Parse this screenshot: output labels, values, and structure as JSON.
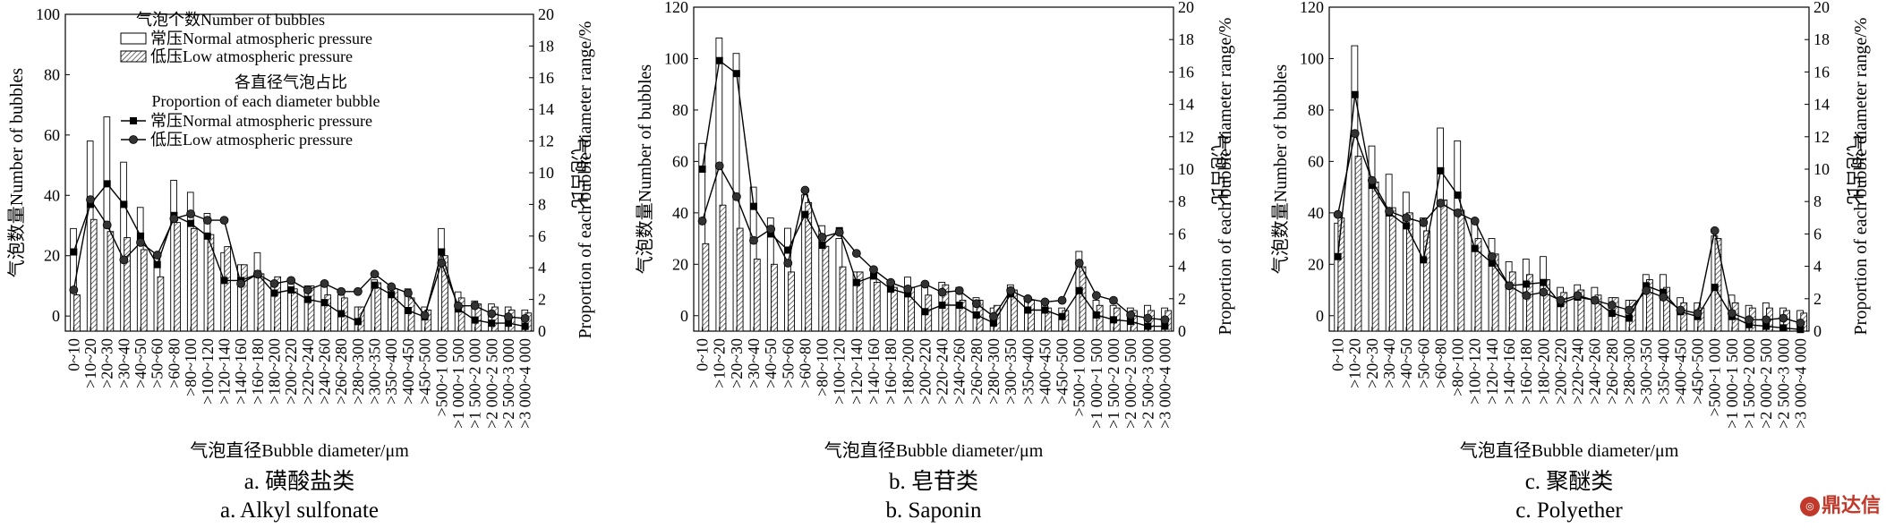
{
  "figure": {
    "watermark": "鼎达信",
    "shared": {
      "categories": [
        "0~10",
        ">10~20",
        ">20~30",
        ">30~40",
        ">40~50",
        ">50~60",
        ">60~80",
        ">80~100",
        ">100~120",
        ">120~140",
        ">140~160",
        ">160~180",
        ">180~200",
        ">200~220",
        ">220~240",
        ">240~260",
        ">260~280",
        ">280~300",
        ">300~350",
        ">350~400",
        ">400~450",
        ">450~500",
        ">500~1 000",
        ">1 000~1 500",
        ">1 500~2 000",
        ">2 000~2 500",
        ">2 500~3 000",
        ">3 000~4 000"
      ],
      "xlabel": "气泡直径Bubble diameter/μm",
      "ylabel_left": "气泡数量Number of bubbles",
      "ylabel_right_cn": "气泡占比",
      "ylabel_right_en": "Proportion of each bubble diameter range/%",
      "legend": {
        "count_title": "气泡个数Number of bubbles",
        "count_normal": "常压Normal atmospheric pressure",
        "count_low": "低压Low atmospheric pressure",
        "prop_title_cn": "各直径气泡占比",
        "prop_title_en": "Proportion of each diameter bubble",
        "prop_normal": "常压Normal atmospheric pressure",
        "prop_low": "低压Low atmospheric pressure"
      }
    }
  },
  "chart_data": [
    {
      "type": "bar",
      "caption_cn": "a. 磺酸盐类",
      "caption_en": "a. Alkyl sulfonate",
      "ylim_left": [
        -5,
        100
      ],
      "yticks_left": [
        0,
        20,
        40,
        60,
        80,
        100
      ],
      "ylim_right": [
        0,
        20
      ],
      "yticks_right": [
        0,
        2,
        4,
        6,
        8,
        10,
        12,
        14,
        16,
        18,
        20
      ],
      "legend_position": "top-left",
      "series": [
        {
          "name": "常压Normal atmospheric pressure",
          "kind": "bar",
          "axis": "left",
          "style": "open",
          "values": [
            29,
            58,
            66,
            51,
            36,
            20,
            45,
            41,
            34,
            21,
            17,
            21,
            10,
            12,
            10,
            10,
            7,
            3,
            12,
            10,
            9,
            3,
            29,
            8,
            5,
            4,
            3,
            2
          ]
        },
        {
          "name": "低压Low atmospheric pressure",
          "kind": "bar",
          "axis": "left",
          "style": "hatched",
          "values": [
            7,
            32,
            28,
            26,
            22,
            13,
            31,
            29,
            27,
            23,
            17,
            14,
            13,
            9,
            10,
            7,
            6,
            3,
            11,
            9,
            6,
            2,
            20,
            6,
            4,
            3,
            2,
            1
          ]
        },
        {
          "name": "常压Normal atmospheric pressure",
          "kind": "line",
          "axis": "right",
          "marker": "square",
          "values": [
            5.0,
            8.0,
            9.3,
            8.0,
            6.0,
            4.2,
            7.3,
            6.8,
            6.0,
            3.2,
            3.2,
            3.6,
            2.4,
            2.6,
            2.0,
            1.8,
            1.1,
            0.6,
            2.9,
            2.3,
            1.3,
            0.9,
            5.0,
            1.4,
            0.7,
            0.5,
            0.5,
            0.3
          ]
        },
        {
          "name": "低压Low atmospheric pressure",
          "kind": "line",
          "axis": "right",
          "marker": "circle",
          "values": [
            2.6,
            8.3,
            6.7,
            4.5,
            5.6,
            4.8,
            7.1,
            7.4,
            7.0,
            7.0,
            3.0,
            3.6,
            3.0,
            3.2,
            2.6,
            3.0,
            2.5,
            2.5,
            3.6,
            2.8,
            2.4,
            1.0,
            4.3,
            1.6,
            1.6,
            1.1,
            0.9,
            0.8
          ]
        }
      ]
    },
    {
      "type": "bar",
      "caption_cn": "b. 皂苷类",
      "caption_en": "b. Saponin",
      "ylim_left": [
        -6,
        120
      ],
      "yticks_left": [
        0,
        20,
        40,
        60,
        80,
        100,
        120
      ],
      "ylim_right": [
        0,
        20
      ],
      "yticks_right": [
        0,
        2,
        4,
        6,
        8,
        10,
        12,
        14,
        16,
        18,
        20
      ],
      "series": [
        {
          "name": "常压Normal atmospheric pressure",
          "kind": "bar",
          "axis": "left",
          "style": "open",
          "values": [
            67,
            108,
            102,
            50,
            38,
            34,
            47,
            35,
            30,
            17,
            15,
            13,
            15,
            13,
            13,
            11,
            7,
            3,
            12,
            6,
            5,
            3,
            25,
            6,
            4,
            3,
            4,
            3
          ]
        },
        {
          "name": "低压Low atmospheric pressure",
          "kind": "bar",
          "axis": "left",
          "style": "hatched",
          "values": [
            28,
            43,
            34,
            22,
            20,
            17,
            44,
            27,
            19,
            17,
            13,
            11,
            11,
            8,
            12,
            6,
            6,
            4,
            10,
            6,
            3,
            2,
            19,
            4,
            3,
            2,
            2,
            2
          ]
        },
        {
          "name": "常压Normal atmospheric pressure",
          "kind": "line",
          "axis": "right",
          "marker": "square",
          "values": [
            10.0,
            16.7,
            15.9,
            7.7,
            6.0,
            5.0,
            7.2,
            5.3,
            6.2,
            3.0,
            3.4,
            2.6,
            2.3,
            1.2,
            1.6,
            1.6,
            1.0,
            0.5,
            2.3,
            1.3,
            1.3,
            0.9,
            2.5,
            1.0,
            0.7,
            0.6,
            0.3,
            0.3
          ]
        },
        {
          "name": "低压Low atmospheric pressure",
          "kind": "line",
          "axis": "right",
          "marker": "circle",
          "values": [
            6.8,
            10.2,
            8.3,
            5.6,
            6.3,
            4.2,
            8.7,
            5.8,
            6.1,
            4.8,
            3.8,
            3.0,
            2.6,
            2.9,
            2.4,
            2.5,
            1.7,
            0.9,
            2.5,
            2.0,
            1.8,
            1.9,
            4.2,
            2.2,
            1.9,
            1.0,
            0.8,
            0.7
          ]
        }
      ]
    },
    {
      "type": "bar",
      "caption_cn": "c. 聚醚类",
      "caption_en": "c. Polyether",
      "ylim_left": [
        -6,
        120
      ],
      "yticks_left": [
        0,
        20,
        40,
        60,
        80,
        100,
        120
      ],
      "ylim_right": [
        0,
        20
      ],
      "yticks_right": [
        0,
        2,
        4,
        6,
        8,
        10,
        12,
        14,
        16,
        18,
        20
      ],
      "series": [
        {
          "name": "常压Normal atmospheric pressure",
          "kind": "bar",
          "axis": "left",
          "style": "open",
          "values": [
            36,
            105,
            66,
            55,
            48,
            38,
            73,
            68,
            36,
            30,
            21,
            22,
            23,
            11,
            12,
            11,
            7,
            6,
            16,
            16,
            7,
            5,
            31,
            8,
            4,
            5,
            3,
            2
          ]
        },
        {
          "name": "低压Low atmospheric pressure",
          "kind": "bar",
          "axis": "left",
          "style": "hatched",
          "values": [
            38,
            62,
            52,
            42,
            40,
            33,
            45,
            41,
            30,
            24,
            17,
            16,
            14,
            9,
            10,
            8,
            7,
            6,
            14,
            11,
            5,
            3,
            30,
            5,
            3,
            3,
            2,
            1
          ]
        },
        {
          "name": "常压Normal atmospheric pressure",
          "kind": "line",
          "axis": "right",
          "marker": "square",
          "values": [
            4.6,
            14.6,
            9.0,
            7.3,
            6.5,
            4.4,
            9.9,
            8.4,
            5.1,
            4.2,
            2.8,
            2.9,
            3.0,
            1.7,
            2.1,
            1.9,
            1.1,
            0.8,
            2.8,
            2.4,
            1.2,
            0.9,
            2.7,
            0.9,
            0.4,
            0.3,
            0.2,
            0.1
          ]
        },
        {
          "name": "低压Low atmospheric pressure",
          "kind": "line",
          "axis": "right",
          "marker": "circle",
          "values": [
            7.2,
            12.2,
            9.3,
            7.4,
            7.0,
            6.7,
            7.9,
            7.3,
            6.8,
            4.6,
            2.8,
            2.2,
            2.4,
            1.9,
            2.2,
            1.9,
            1.6,
            1.3,
            2.5,
            2.1,
            1.3,
            1.1,
            6.2,
            1.1,
            0.7,
            0.7,
            0.8,
            0.5
          ]
        }
      ]
    }
  ]
}
